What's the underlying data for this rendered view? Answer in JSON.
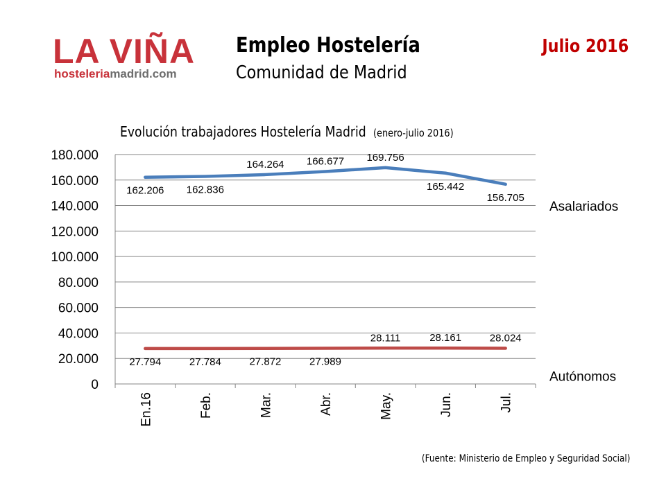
{
  "logo": {
    "main": "LA VIÑA",
    "sub_a": "hosteleria",
    "sub_b": "madrid.com"
  },
  "header": {
    "title": "Empleo Hostelería",
    "subtitle": "Comunidad de Madrid",
    "date": "Julio 2016"
  },
  "source": "(Fuente: Ministerio de Empleo y Seguridad Social)",
  "colors": {
    "brand": "#c8323a",
    "asalariados": "#4a7ebb",
    "autonomos": "#be4b48",
    "date": "#c00000"
  },
  "chart_data": {
    "type": "line",
    "title": "Evolución trabajadores Hostelería Madrid",
    "subtitle": "(enero-julio 2016)",
    "categories": [
      "En.16",
      "Feb.",
      "Mar.",
      "Abr.",
      "May.",
      "Jun.",
      "Jul."
    ],
    "ylim": [
      0,
      180000
    ],
    "yticks": [
      0,
      20000,
      40000,
      60000,
      80000,
      100000,
      120000,
      140000,
      160000,
      180000
    ],
    "ytick_labels": [
      "0",
      "20.000",
      "40.000",
      "60.000",
      "80.000",
      "100.000",
      "120.000",
      "140.000",
      "160.000",
      "180.000"
    ],
    "grid": true,
    "series": [
      {
        "name": "Asalariados",
        "values": [
          162206,
          162836,
          164264,
          166677,
          169756,
          165442,
          156705
        ],
        "labels": [
          "162.206",
          "162.836",
          "164.264",
          "166.677",
          "169.756",
          "165.442",
          "156.705"
        ],
        "label_pos": [
          "below",
          "below",
          "above",
          "above",
          "above",
          "below",
          "below"
        ]
      },
      {
        "name": "Autónomos",
        "values": [
          27794,
          27784,
          27872,
          27989,
          28111,
          28161,
          28024
        ],
        "labels": [
          "27.794",
          "27.784",
          "27.872",
          "27.989",
          "28.111",
          "28.161",
          "28.024"
        ],
        "label_pos": [
          "below",
          "below",
          "below",
          "below",
          "above",
          "above",
          "above"
        ]
      }
    ]
  }
}
